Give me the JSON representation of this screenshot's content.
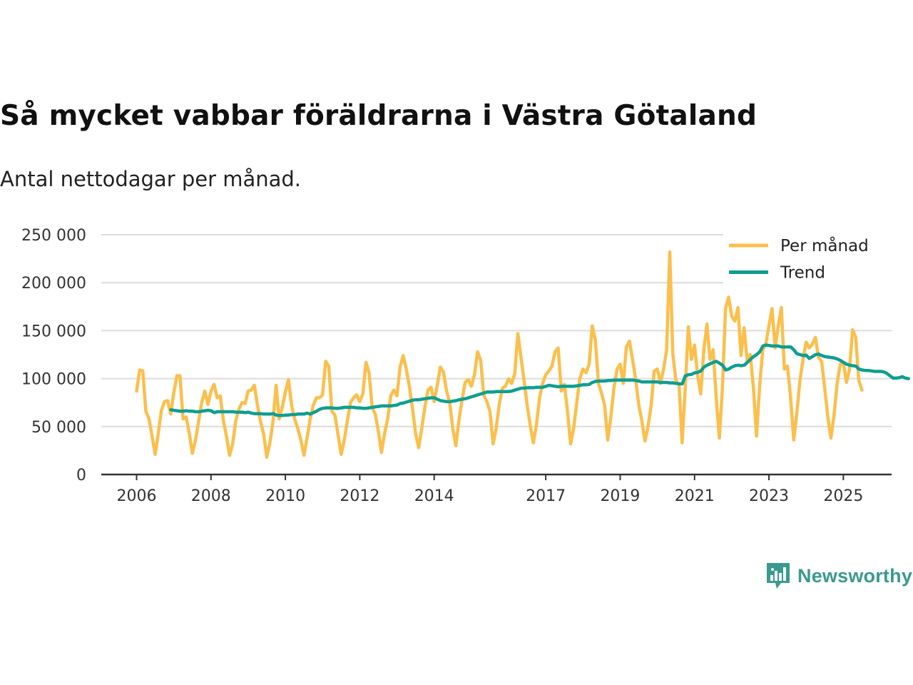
{
  "chart_data": {
    "type": "line",
    "title": "Så mycket vabbar föräldrarna i Västra Götaland",
    "subtitle": "Antal nettodagar per månad.",
    "xlabel": "",
    "ylabel": "",
    "ylim": [
      0,
      250000
    ],
    "xlim": [
      2005.8,
      2025.9
    ],
    "yticks": [
      0,
      50000,
      100000,
      150000,
      200000,
      250000
    ],
    "ytick_labels": [
      "0",
      "50 000",
      "100 000",
      "150 000",
      "200 000",
      "250 000"
    ],
    "xticks": [
      2006,
      2008,
      2010,
      2012,
      2014,
      2017,
      2019,
      2021,
      2023,
      2025
    ],
    "xtick_labels": [
      "2006",
      "2008",
      "2010",
      "2012",
      "2014",
      "2017",
      "2019",
      "2021",
      "2023",
      "2025"
    ],
    "grid": true,
    "legend_position": "top-right",
    "series": [
      {
        "name": "Per månad",
        "color": "#fbbf4c",
        "x_start": 2006.0,
        "x_step": 0.08333,
        "values": [
          87000,
          109000,
          108000,
          66000,
          58000,
          40000,
          21000,
          43000,
          67000,
          76000,
          77000,
          63000,
          85000,
          103000,
          103000,
          58000,
          60000,
          43000,
          22000,
          36000,
          55000,
          75000,
          87000,
          73000,
          87000,
          94000,
          80000,
          82000,
          56000,
          40000,
          20000,
          32000,
          56000,
          68000,
          75000,
          74000,
          87000,
          88000,
          93000,
          72000,
          55000,
          42000,
          18000,
          33000,
          55000,
          93000,
          58000,
          70000,
          86000,
          99000,
          72000,
          58000,
          48000,
          36000,
          20000,
          38000,
          58000,
          72000,
          80000,
          80000,
          83000,
          118000,
          113000,
          66000,
          62000,
          41000,
          21000,
          36000,
          56000,
          75000,
          80000,
          83000,
          76000,
          84000,
          117000,
          106000,
          70000,
          63000,
          45000,
          23000,
          43000,
          58000,
          82000,
          88000,
          82000,
          112000,
          124000,
          110000,
          92000,
          69000,
          43000,
          28000,
          48000,
          70000,
          88000,
          91000,
          76000,
          93000,
          112000,
          107000,
          87000,
          75000,
          48000,
          30000,
          56000,
          78000,
          96000,
          99000,
          92000,
          104000,
          128000,
          119000,
          83000,
          76000,
          66000,
          32000,
          48000,
          73000,
          90000,
          92000,
          100000,
          95000,
          105000,
          147000,
          122000,
          98000,
          72000,
          51000,
          33000,
          52000,
          80000,
          95000,
          104000,
          108000,
          113000,
          128000,
          132000,
          87000,
          94000,
          67000,
          32000,
          48000,
          75000,
          100000,
          110000,
          106000,
          115000,
          155000,
          140000,
          95000,
          85000,
          72000,
          36000,
          60000,
          90000,
          110000,
          115000,
          95000,
          133000,
          139000,
          120000,
          99000,
          73000,
          56000,
          35000,
          50000,
          72000,
          108000,
          110000,
          95000,
          110000,
          130000,
          232000,
          126000,
          98000,
          94000,
          33000,
          90000,
          154000,
          120000,
          135000,
          103000,
          84000,
          130000,
          157000,
          120000,
          130000,
          80000,
          38000,
          90000,
          173000,
          185000,
          165000,
          160000,
          174000,
          124000,
          153000,
          118000,
          125000,
          90000,
          40000,
          92000,
          130000,
          136000,
          155000,
          173000,
          132000,
          155000,
          174000,
          110000,
          113000,
          80000,
          36000,
          64000,
          98000,
          120000,
          138000,
          132000,
          136000,
          143000,
          122000,
          118000,
          90000,
          60000,
          38000,
          62000,
          95000,
          115000,
          117000,
          96000,
          110000,
          151000,
          143000,
          98000,
          88000
        ]
      },
      {
        "name": "Trend",
        "color": "#0f9e90",
        "x_start": 2006.92,
        "x_step": 0.08333,
        "values": [
          67500,
          67000,
          66500,
          66000,
          66000,
          66500,
          66000,
          66000,
          65500,
          65500,
          66000,
          66500,
          67000,
          66500,
          64500,
          65500,
          65500,
          65500,
          65500,
          65500,
          65500,
          65000,
          65000,
          65000,
          64500,
          65000,
          64000,
          63500,
          63500,
          63500,
          63000,
          63000,
          63000,
          63500,
          62000,
          61500,
          61500,
          62000,
          62000,
          62500,
          62500,
          63000,
          63000,
          63000,
          64000,
          63000,
          64500,
          66000,
          68000,
          69000,
          69500,
          69500,
          69500,
          69000,
          69000,
          69500,
          70000,
          70000,
          70000,
          70000,
          69500,
          69500,
          69000,
          69000,
          69500,
          70000,
          70500,
          71000,
          71500,
          71500,
          71500,
          71500,
          72000,
          72500,
          74000,
          74500,
          75500,
          76500,
          77500,
          78000,
          78000,
          78500,
          79000,
          79500,
          80000,
          80000,
          78500,
          77000,
          76500,
          76000,
          76000,
          76500,
          77000,
          78000,
          78500,
          79000,
          80000,
          81000,
          82000,
          83000,
          84000,
          85000,
          86000,
          86000,
          86000,
          86500,
          86500,
          86500,
          86500,
          86500,
          87000,
          88000,
          89000,
          90000,
          90000,
          90500,
          90500,
          90500,
          91000,
          91000,
          91000,
          92000,
          93000,
          92500,
          92000,
          91500,
          92000,
          92000,
          92000,
          92000,
          92000,
          92500,
          93000,
          93500,
          93500,
          94000,
          96000,
          97000,
          97500,
          97500,
          97500,
          98000,
          98000,
          98500,
          98500,
          98500,
          98500,
          98500,
          98500,
          98500,
          98000,
          97500,
          96500,
          96500,
          96500,
          96500,
          96500,
          96500,
          96000,
          96000,
          96000,
          95500,
          95500,
          95000,
          94500,
          94500,
          103000,
          104000,
          104500,
          106000,
          106500,
          108000,
          112000,
          114000,
          115500,
          117000,
          118000,
          116000,
          114000,
          109000,
          110000,
          112000,
          113500,
          114000,
          113500,
          114000,
          117000,
          120000,
          123000,
          125000,
          128000,
          134000,
          135000,
          134500,
          134000,
          134000,
          134000,
          133000,
          133000,
          133000,
          133000,
          130000,
          126000,
          125000,
          124000,
          124500,
          121000,
          123000,
          125000,
          125500,
          124000,
          123000,
          122500,
          122000,
          121500,
          120500,
          119000,
          117000,
          115000,
          114000,
          113500,
          113000,
          110000,
          109000,
          108500,
          108500,
          108000,
          107500,
          107500,
          107500,
          107000,
          105500,
          103000,
          100500,
          100500,
          101000,
          102000,
          100500,
          100000
        ]
      }
    ]
  },
  "branding": {
    "logo_text": "Newsworthy",
    "logo_icon": "bar-chart-speech-bubble-icon"
  }
}
